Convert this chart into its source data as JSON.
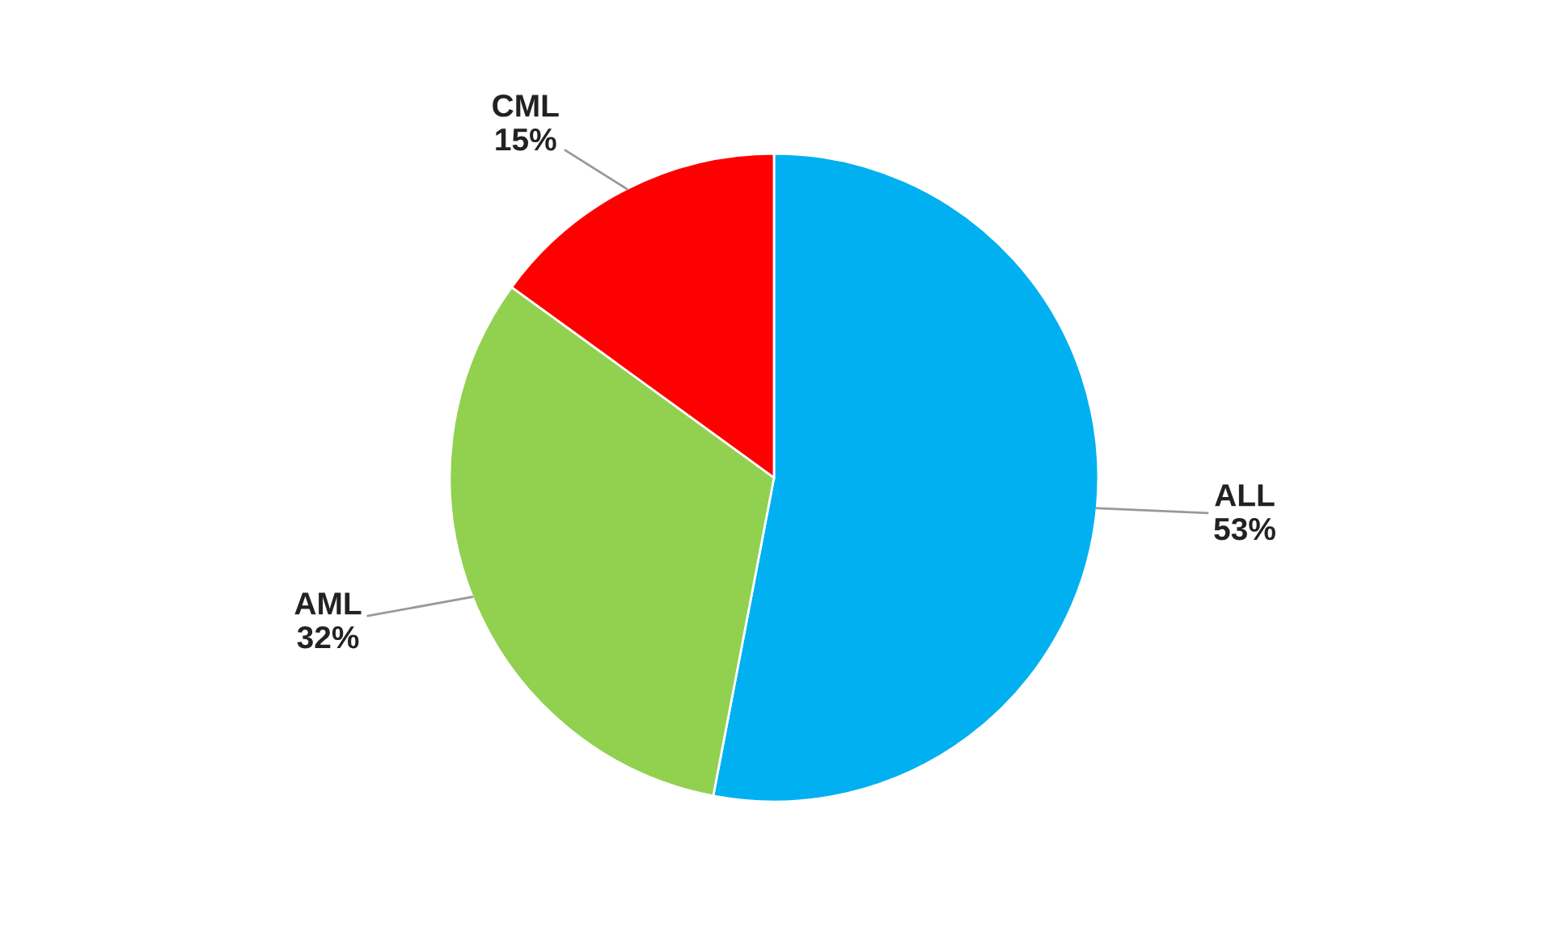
{
  "chart_data": {
    "type": "pie",
    "categories": [
      "ALL",
      "AML",
      "CML"
    ],
    "values": [
      53,
      32,
      15
    ],
    "value_labels": [
      "53%",
      "32%",
      "15%"
    ],
    "colors": [
      "#00b0f0",
      "#92d050",
      "#ff0000"
    ],
    "legend": false
  }
}
